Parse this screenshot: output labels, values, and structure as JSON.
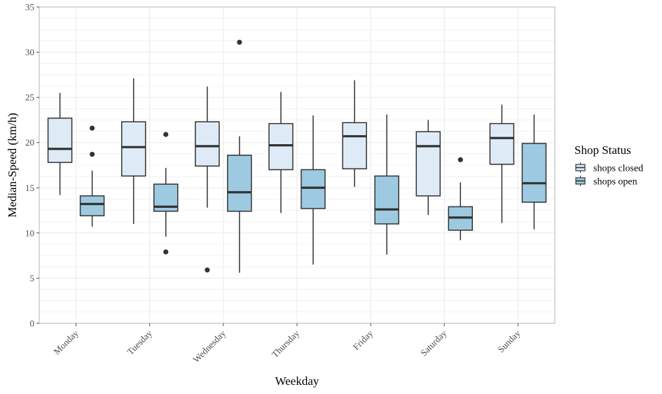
{
  "chart_data": {
    "type": "boxplot",
    "xlabel": "Weekday",
    "ylabel": "Median-Speed (km/h)",
    "ylim": [
      0,
      35
    ],
    "y_ticks": [
      0,
      5,
      10,
      15,
      20,
      25,
      30,
      35
    ],
    "grid": true,
    "legend": {
      "title": "Shop Status",
      "placement": "right"
    },
    "categories": [
      "Monday",
      "Tuesday",
      "Wednesday",
      "Thursday",
      "Friday",
      "Saturday",
      "Sunday"
    ],
    "series": [
      {
        "name": "shops closed",
        "color": "#deebf7",
        "boxes": [
          {
            "min": 14.2,
            "q1": 17.8,
            "median": 19.3,
            "q3": 22.7,
            "max": 25.5,
            "outliers": []
          },
          {
            "min": 11.0,
            "q1": 16.3,
            "median": 19.5,
            "q3": 22.3,
            "max": 27.1,
            "outliers": []
          },
          {
            "min": 12.8,
            "q1": 17.4,
            "median": 19.6,
            "q3": 22.3,
            "max": 26.2,
            "outliers": [
              5.9
            ]
          },
          {
            "min": 12.2,
            "q1": 17.0,
            "median": 19.7,
            "q3": 22.1,
            "max": 25.6,
            "outliers": []
          },
          {
            "min": 15.1,
            "q1": 17.1,
            "median": 20.7,
            "q3": 22.2,
            "max": 26.9,
            "outliers": []
          },
          {
            "min": 12.0,
            "q1": 14.1,
            "median": 19.6,
            "q3": 21.2,
            "max": 22.5,
            "outliers": []
          },
          {
            "min": 11.1,
            "q1": 17.6,
            "median": 20.5,
            "q3": 22.1,
            "max": 24.2,
            "outliers": []
          }
        ]
      },
      {
        "name": "shops open",
        "color": "#9ecae1",
        "boxes": [
          {
            "min": 10.7,
            "q1": 11.9,
            "median": 13.2,
            "q3": 14.1,
            "max": 16.9,
            "outliers": [
              21.6,
              18.7
            ]
          },
          {
            "min": 9.6,
            "q1": 12.4,
            "median": 12.9,
            "q3": 15.4,
            "max": 17.2,
            "outliers": [
              20.9,
              7.9
            ]
          },
          {
            "min": 5.6,
            "q1": 12.4,
            "median": 14.5,
            "q3": 18.6,
            "max": 20.7,
            "outliers": [
              31.1
            ]
          },
          {
            "min": 6.5,
            "q1": 12.7,
            "median": 15.0,
            "q3": 17.0,
            "max": 23.0,
            "outliers": []
          },
          {
            "min": 7.6,
            "q1": 11.0,
            "median": 12.6,
            "q3": 16.3,
            "max": 23.1,
            "outliers": []
          },
          {
            "min": 9.2,
            "q1": 10.3,
            "median": 11.7,
            "q3": 12.9,
            "max": 15.6,
            "outliers": [
              18.1
            ]
          },
          {
            "min": 10.4,
            "q1": 13.4,
            "median": 15.5,
            "q3": 19.9,
            "max": 23.1,
            "outliers": []
          }
        ]
      }
    ]
  }
}
